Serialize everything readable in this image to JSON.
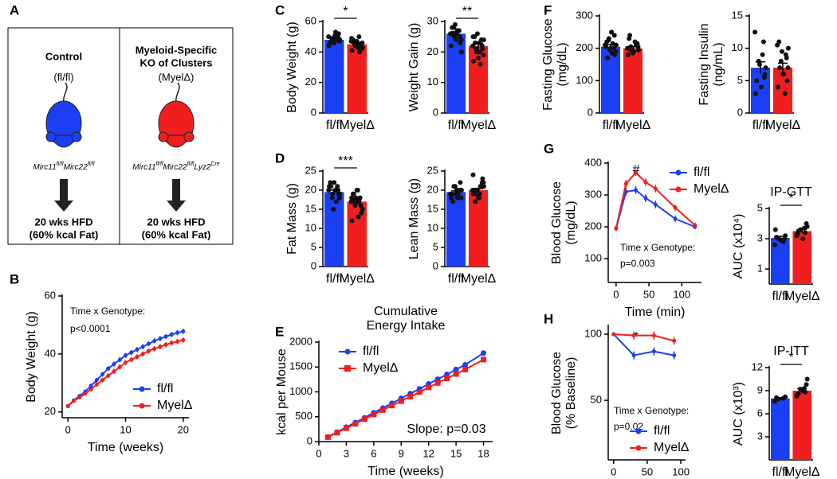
{
  "panels": [
    "A",
    "B",
    "C",
    "D",
    "E",
    "F",
    "G",
    "H"
  ],
  "diagram": {
    "left": {
      "title": [
        "Control"
      ],
      "genotype": "(fl/fl)",
      "color": "#1a3ff5",
      "gene": [
        "Mirc11",
        "fl/fl",
        "Mirc22",
        "fl/fl"
      ],
      "diet": [
        "20 wks HFD",
        "(60% kcal Fat)"
      ]
    },
    "right": {
      "title": [
        "Myeloid-Specific",
        "KO of Clusters"
      ],
      "genotype": "(MyelΔ)",
      "color": "#f01e1e",
      "gene": [
        "Mirc11",
        "fl/fl",
        "Mirc22",
        "fl/fl",
        "Lyz2",
        "Cre"
      ],
      "diet": [
        "20 wks HFD",
        "(60% kcal Fat)"
      ]
    }
  },
  "chart_data": [
    {
      "type": "line",
      "xlabel": "Time (weeks)",
      "ylabel": [
        "Body Weight (g)"
      ],
      "annotations": [
        "Time x Genotype:",
        "p<0.0001"
      ],
      "x": [
        0,
        1,
        2,
        3,
        4,
        5,
        6,
        7,
        8,
        9,
        10,
        11,
        12,
        13,
        14,
        15,
        16,
        17,
        18,
        19,
        20
      ],
      "xlim": [
        -1,
        21
      ],
      "xticks": [
        0,
        10,
        20
      ],
      "ylim": [
        18,
        60
      ],
      "yticks": [
        20,
        40,
        60
      ],
      "legend": "lower right",
      "series": [
        {
          "name": "fl/fl",
          "color": "#1a3ff5",
          "marker": "none",
          "values": [
            22,
            24,
            25.5,
            27,
            29,
            31,
            33,
            35,
            36.5,
            38,
            39.5,
            40.5,
            41.5,
            42.5,
            43.5,
            44.5,
            45.3,
            46,
            46.7,
            47.3,
            47.8
          ],
          "errors": [
            0.5,
            0.6,
            0.6,
            0.7,
            0.7,
            0.8,
            0.8,
            0.8,
            0.9,
            0.9,
            0.9,
            0.9,
            0.9,
            0.9,
            0.9,
            0.9,
            0.9,
            0.9,
            0.9,
            0.9,
            0.9
          ]
        },
        {
          "name": "MyelΔ",
          "color": "#f01e1e",
          "marker": "none",
          "values": [
            22,
            23.8,
            25,
            26.3,
            27.8,
            29.5,
            31,
            32.5,
            34,
            35.5,
            37,
            38,
            39,
            40,
            41,
            41.8,
            42.5,
            43.2,
            43.8,
            44.3,
            44.8
          ],
          "errors": [
            0.5,
            0.6,
            0.6,
            0.7,
            0.7,
            0.8,
            0.8,
            0.8,
            0.9,
            0.9,
            0.9,
            0.9,
            0.9,
            0.9,
            0.9,
            0.9,
            0.9,
            0.9,
            0.9,
            0.9,
            0.9
          ]
        }
      ]
    },
    {
      "type": "bar",
      "ylabel": [
        "Body Weight (g)"
      ],
      "categories": [
        "fl/fl",
        "MyelΔ"
      ],
      "colors": [
        "#1a3ff5",
        "#f01e1e"
      ],
      "values": [
        48,
        45
      ],
      "errors": [
        1,
        1.2
      ],
      "significance": "*",
      "ylim": [
        0,
        60
      ],
      "yticks": [
        0,
        20,
        40,
        60
      ],
      "points": [
        [
          50,
          49,
          48,
          47,
          46,
          51,
          52,
          45,
          48,
          49,
          50,
          47,
          46,
          48,
          49,
          53,
          44
        ],
        [
          47,
          45,
          44,
          46,
          48,
          43,
          42,
          41,
          50,
          45,
          44,
          46,
          47,
          43,
          45,
          44,
          49,
          40
        ]
      ]
    },
    {
      "type": "bar",
      "ylabel": [
        "Weight Gain (g)"
      ],
      "categories": [
        "fl/fl",
        "MyelΔ"
      ],
      "colors": [
        "#1a3ff5",
        "#f01e1e"
      ],
      "values": [
        26,
        22
      ],
      "errors": [
        0.7,
        0.9
      ],
      "significance": "**",
      "ylim": [
        0,
        30
      ],
      "yticks": [
        0,
        10,
        20,
        30
      ],
      "points": [
        [
          26,
          27,
          25,
          24,
          28,
          26,
          23,
          22,
          27,
          29,
          25,
          26,
          24,
          20,
          28,
          27
        ],
        [
          22,
          24,
          20,
          19,
          25,
          23,
          21,
          17,
          16,
          26,
          22,
          23,
          18,
          24,
          21,
          20,
          25
        ]
      ]
    },
    {
      "type": "bar",
      "ylabel": [
        "Fat Mass (g)"
      ],
      "categories": [
        "fl/fl",
        "MyelΔ"
      ],
      "colors": [
        "#1a3ff5",
        "#f01e1e"
      ],
      "values": [
        19.5,
        17
      ],
      "errors": [
        0.5,
        0.6
      ],
      "significance": "***",
      "ylim": [
        0,
        25
      ],
      "yticks": [
        0,
        5,
        10,
        15,
        20,
        25
      ],
      "points": [
        [
          20,
          21,
          19,
          18,
          22,
          20,
          19,
          21,
          17,
          15,
          20,
          21,
          22,
          19,
          18,
          20
        ],
        [
          17,
          18,
          16,
          15,
          19,
          20,
          14,
          12,
          17,
          18,
          16,
          19,
          20,
          15,
          17,
          13,
          18
        ]
      ]
    },
    {
      "type": "bar",
      "ylabel": [
        "Lean Mass (g)"
      ],
      "categories": [
        "fl/fl",
        "MyelΔ"
      ],
      "colors": [
        "#1a3ff5",
        "#f01e1e"
      ],
      "values": [
        19.5,
        20
      ],
      "errors": [
        0.3,
        0.4
      ],
      "ylim": [
        0,
        25
      ],
      "yticks": [
        0,
        5,
        10,
        15,
        20,
        25
      ],
      "points": [
        [
          19,
          20,
          21,
          18,
          19,
          20,
          22,
          18,
          19,
          21,
          20,
          17,
          19,
          20,
          21,
          18
        ],
        [
          20,
          21,
          19,
          22,
          20,
          18,
          23,
          19,
          21,
          20,
          22,
          17,
          18,
          21,
          20,
          19,
          24
        ]
      ]
    },
    {
      "type": "line",
      "title": [
        "Cumulative",
        "Energy Intake"
      ],
      "xlabel": "Time (weeks)",
      "ylabel": [
        "kcal per Mouse"
      ],
      "annotations": [
        "Slope: p=0.03"
      ],
      "x": [
        1,
        2,
        3,
        4,
        5,
        6,
        7,
        8,
        9,
        10,
        11,
        12,
        13,
        14,
        15,
        16,
        18
      ],
      "xlim": [
        0,
        19
      ],
      "xticks": [
        0,
        3,
        6,
        9,
        12,
        15,
        18
      ],
      "ylim": [
        0,
        2000
      ],
      "yticks": [
        0,
        500,
        1000,
        1500,
        2000
      ],
      "legend": "upper left",
      "series": [
        {
          "name": "fl/fl",
          "color": "#1a3ff5",
          "marker": "circle",
          "values": [
            95,
            190,
            290,
            385,
            480,
            580,
            675,
            770,
            870,
            965,
            1060,
            1160,
            1255,
            1350,
            1450,
            1545,
            1780
          ]
        },
        {
          "name": "MyelΔ",
          "color": "#f01e1e",
          "marker": "square",
          "values": [
            90,
            180,
            270,
            360,
            450,
            545,
            635,
            725,
            815,
            905,
            995,
            1090,
            1180,
            1270,
            1360,
            1450,
            1650
          ]
        }
      ]
    },
    {
      "type": "bar",
      "ylabel": [
        "Fasting Glucose",
        "(mg/dL)"
      ],
      "categories": [
        "fl/fl",
        "MyelΔ"
      ],
      "colors": [
        "#1a3ff5",
        "#f01e1e"
      ],
      "values": [
        205,
        200
      ],
      "errors": [
        6,
        5
      ],
      "ylim": [
        0,
        300
      ],
      "yticks": [
        0,
        100,
        200,
        300
      ],
      "points": [
        [
          210,
          200,
          230,
          190,
          220,
          250,
          180,
          205,
          215,
          195,
          240,
          170,
          200,
          210,
          225,
          185
        ],
        [
          200,
          210,
          195,
          205,
          230,
          190,
          215,
          180,
          220,
          200,
          210,
          240,
          185,
          195,
          205
        ]
      ]
    },
    {
      "type": "bar",
      "ylabel": [
        "Fasting Insulin",
        "(ng/mL)"
      ],
      "categories": [
        "fl/fl",
        "MyelΔ"
      ],
      "colors": [
        "#1a3ff5",
        "#f01e1e"
      ],
      "values": [
        7,
        7
      ],
      "errors": [
        0.9,
        0.7
      ],
      "ylim": [
        0,
        15
      ],
      "yticks": [
        0,
        5,
        10,
        15
      ],
      "points": [
        [
          12.5,
          11,
          8,
          7,
          5,
          4,
          6,
          3,
          9,
          7.5,
          5.5
        ],
        [
          10.5,
          9,
          8,
          7,
          11,
          6,
          5,
          4,
          3,
          9.5,
          8.5,
          7,
          6,
          10
        ]
      ]
    },
    {
      "type": "line",
      "xlabel": "Time (min)",
      "ylabel": [
        "Blood Glucose",
        "(mg/dL)"
      ],
      "annotations": [
        "#",
        "Time x Genotype:",
        "p=0.003"
      ],
      "x": [
        0,
        15,
        30,
        45,
        60,
        90,
        120
      ],
      "xlim": [
        -12,
        130
      ],
      "xticks": [
        0,
        50,
        100
      ],
      "ylim": [
        25,
        400
      ],
      "yticks": [
        100,
        200,
        300,
        400
      ],
      "legend": "upper right",
      "series": [
        {
          "name": "fl/fl",
          "color": "#1a3ff5",
          "marker": "none",
          "values": [
            195,
            310,
            315,
            290,
            270,
            225,
            200
          ],
          "errors": [
            8,
            12,
            12,
            12,
            12,
            10,
            8
          ]
        },
        {
          "name": "MyelΔ",
          "color": "#f01e1e",
          "marker": "none",
          "values": [
            195,
            335,
            370,
            340,
            320,
            260,
            205
          ],
          "errors": [
            8,
            12,
            10,
            12,
            12,
            10,
            8
          ]
        }
      ]
    },
    {
      "type": "bar",
      "title": [
        "IP-GTT"
      ],
      "ylabel": [
        "AUC (x10⁴)"
      ],
      "categories": [
        "fl/fl",
        "MyelΔ"
      ],
      "colors": [
        "#1a3ff5",
        "#f01e1e"
      ],
      "values": [
        3.05,
        3.5
      ],
      "errors": [
        0.11,
        0.12
      ],
      "significance": "*",
      "ylim": [
        0,
        5
      ],
      "yticks": [
        1,
        3,
        5
      ],
      "points": [
        [
          2.6,
          2.8,
          3.0,
          3.2,
          3.1,
          2.9,
          3.0,
          3.6
        ],
        [
          3.2,
          3.4,
          3.6,
          3.8,
          3.5,
          3.0,
          4.0,
          3.3,
          3.7
        ]
      ]
    },
    {
      "type": "line",
      "xlabel": "Time (min)",
      "ylabel": [
        "Blood Glucose",
        "(% Baseline)"
      ],
      "annotations": [
        "*",
        "Time x Genotype:",
        "p=0.02"
      ],
      "x": [
        0,
        30,
        60,
        90
      ],
      "xlim": [
        -8,
        107
      ],
      "xticks": [
        0,
        50,
        100
      ],
      "ylim": [
        5,
        106
      ],
      "yticks": [
        50,
        100
      ],
      "legend": "lower right",
      "series": [
        {
          "name": "fl/fl",
          "color": "#1a3ff5",
          "marker": "none",
          "values": [
            100,
            84,
            87,
            84
          ],
          "errors": [
            1,
            3,
            3,
            3
          ]
        },
        {
          "name": "MyelΔ",
          "color": "#f01e1e",
          "marker": "none",
          "values": [
            100,
            99,
            99,
            95
          ],
          "errors": [
            1,
            3,
            3,
            3
          ]
        }
      ]
    },
    {
      "type": "bar",
      "title": [
        "IP-ITT"
      ],
      "ylabel": [
        "AUC (x10³)"
      ],
      "categories": [
        "fl/fl",
        "MyelΔ"
      ],
      "colors": [
        "#1a3ff5",
        "#f01e1e"
      ],
      "values": [
        8,
        9
      ],
      "errors": [
        0.1,
        0.3
      ],
      "significance": "*",
      "ylim": [
        0,
        12
      ],
      "yticks": [
        3,
        6,
        9,
        12
      ],
      "points": [
        [
          7.6,
          8.0,
          7.9,
          8.2,
          8.1
        ],
        [
          8.3,
          8.8,
          9.2,
          10.5,
          8.6,
          9.0,
          9.8,
          8.5,
          9.3
        ]
      ]
    }
  ]
}
